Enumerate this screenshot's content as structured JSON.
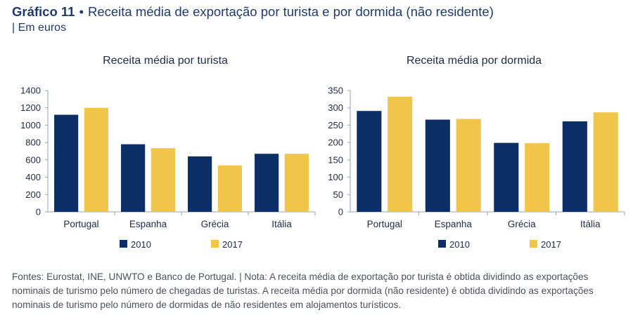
{
  "header": {
    "figure_number": "Gráfico 11",
    "bullet": "•",
    "title": "Receita média de exportação por turista e por dormida (não residente)",
    "unit": "| Em euros"
  },
  "colors": {
    "series_2010": "#0b2f66",
    "series_2017": "#f1c54a",
    "axis": "#9aa3b2",
    "text": "#1d2a45"
  },
  "chart_data": [
    {
      "type": "bar",
      "title": "Receita média por turista",
      "categories": [
        "Portugal",
        "Espanha",
        "Grécia",
        "Itália"
      ],
      "series": [
        {
          "name": "2010",
          "values": [
            1120,
            780,
            640,
            670
          ]
        },
        {
          "name": "2017",
          "values": [
            1200,
            735,
            535,
            670
          ]
        }
      ],
      "ylim": [
        0,
        1400
      ],
      "yticks": [
        0,
        200,
        400,
        600,
        800,
        1000,
        1200,
        1400
      ],
      "legend": "bottom"
    },
    {
      "type": "bar",
      "title": "Receita média por dormida",
      "categories": [
        "Portugal",
        "Espanha",
        "Grécia",
        "Itália"
      ],
      "series": [
        {
          "name": "2010",
          "values": [
            291,
            266,
            199,
            261
          ]
        },
        {
          "name": "2017",
          "values": [
            332,
            268,
            198,
            287
          ]
        }
      ],
      "ylim": [
        0,
        350
      ],
      "yticks": [
        0,
        50,
        100,
        150,
        200,
        250,
        300,
        350
      ],
      "legend": "bottom"
    }
  ],
  "footer": {
    "line1": "Fontes: Eurostat, INE, UNWTO e Banco de Portugal.  |  Nota: A receita média de exportação por turista é obtida dividindo as exportações",
    "line2": "nominais de turismo pelo número de chegadas de turistas. A receita média por dormida (não residente) é obtida dividindo as exportações",
    "line3": "nominais de turismo pelo número de dormidas de não residentes em alojamentos turísticos."
  }
}
